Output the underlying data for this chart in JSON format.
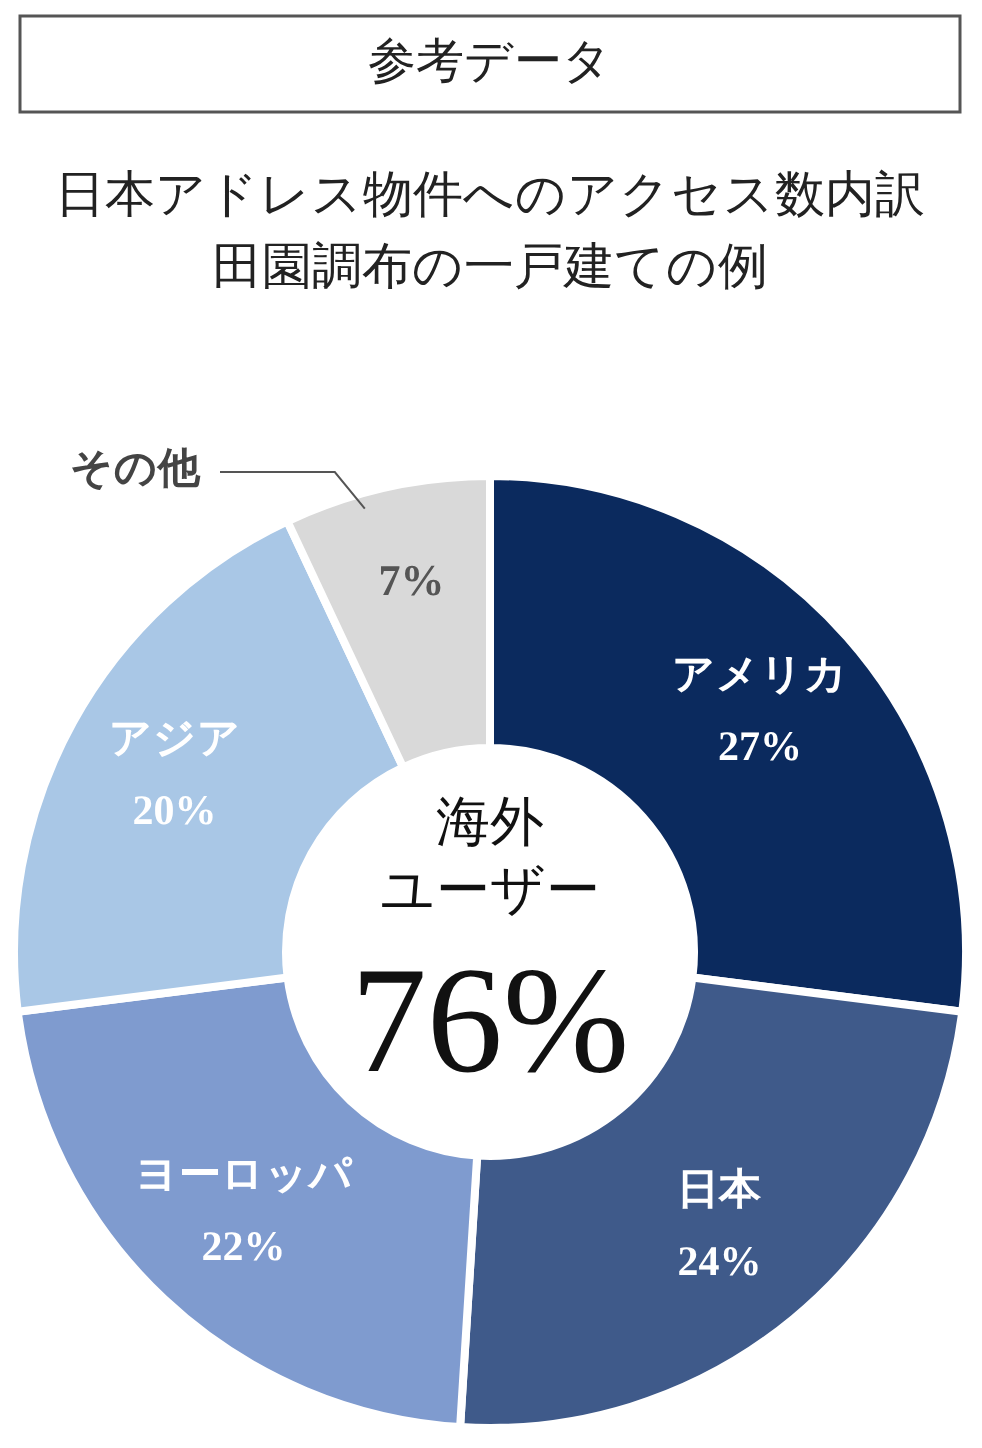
{
  "chart_data": {
    "type": "donut",
    "title": "参考データ",
    "subtitle": "日本アドレス物件へのアクセス数内訳",
    "categories": [
      "アメリカ",
      "日本",
      "ヨーロッパ",
      "アジア",
      "その他"
    ],
    "values": [
      27,
      24,
      22,
      20,
      7
    ],
    "colors": [
      "#0b2a5e",
      "#3f5a8a",
      "#7f9bcf",
      "#a9c7e6",
      "#d9d9d9"
    ],
    "value_labels": [
      "27%",
      "24%",
      "22%",
      "20%",
      "7%"
    ],
    "annotations": [
      "田園調布の一戸建ての例",
      "海外",
      "ユーザー",
      "76%"
    ]
  }
}
